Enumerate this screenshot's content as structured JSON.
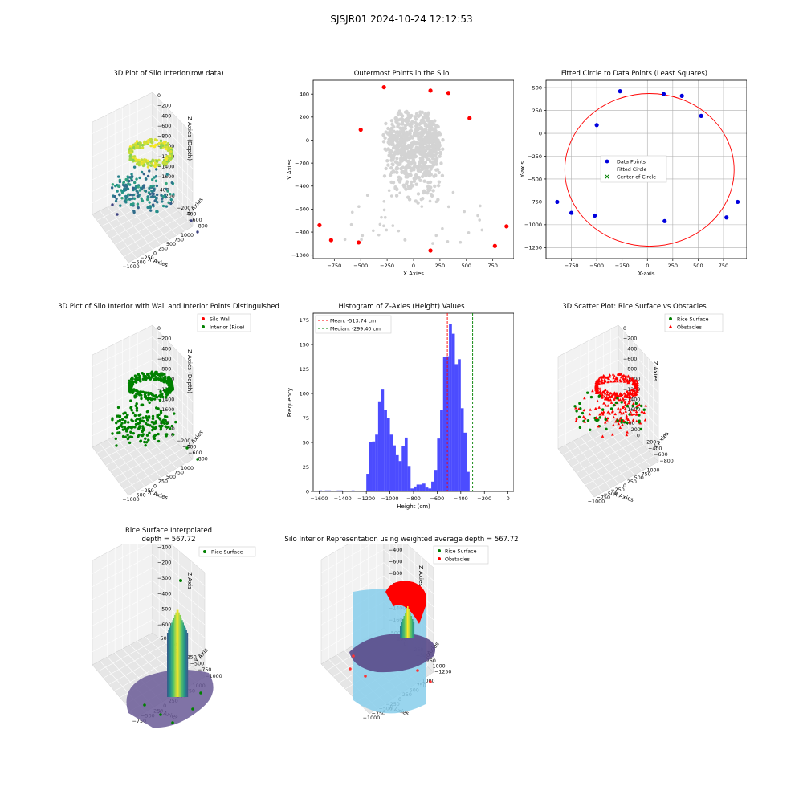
{
  "suptitle": "SJSJR01 2024-10-24 12:12:53",
  "panels": {
    "p1": {
      "title": "3D Plot of Silo Interior(row data)"
    },
    "p2": {
      "title": "Outermost Points in the Silo"
    },
    "p3": {
      "title": "Fitted Circle to Data Points (Least Squares)"
    },
    "p4": {
      "title": "3D Plot of Silo Interior with Wall and Interior Points Distinguished"
    },
    "p5": {
      "title": "Histogram of Z-Axies (Height) Values"
    },
    "p6": {
      "title": "3D Scatter Plot: Rice Surface vs Obstacles"
    },
    "p7": {
      "title_line1": "Rice Surface Interpolated",
      "title_line2": "depth = 567.72"
    },
    "p8": {
      "title": "Silo Interior Representation using weighted average depth = 567.72"
    }
  },
  "chart_data": [
    {
      "id": "p1",
      "type": "scatter",
      "projection": "3d",
      "title": "3D Plot of Silo Interior(row data)",
      "xlabel": "X Axies",
      "ylabel": "Y Axies",
      "zlabel": "Z Axies (Depth)",
      "xticks": [
        "−1000",
        "−500",
        "−250",
        "0",
        "250",
        "500",
        "750",
        "1000"
      ],
      "yticks": [
        "−800",
        "−600",
        "−400",
        "−200",
        "0",
        "200",
        "400"
      ],
      "zticks": [
        "0",
        "−200",
        "−400",
        "−600",
        "−800",
        "−1000",
        "−1200",
        "−1400",
        "−1600"
      ],
      "colormap": "viridis"
    },
    {
      "id": "p2",
      "type": "scatter",
      "title": "Outermost Points in the Silo",
      "xlabel": "X Axies",
      "ylabel": "Y Axies",
      "xlim": [
        -950,
        950
      ],
      "ylim": [
        -1030,
        520
      ],
      "xticks": [
        -750,
        -500,
        -250,
        0,
        250,
        500,
        750
      ],
      "yticks": [
        -1000,
        -800,
        -600,
        -400,
        -200,
        0,
        200,
        400
      ],
      "series": [
        {
          "color": "#d3d3d3"
        },
        {
          "color": "#ff0000",
          "x": [
            -890,
            -780,
            -520,
            -500,
            -280,
            160,
            160,
            330,
            530,
            770,
            880
          ],
          "y": [
            -740,
            -870,
            -890,
            90,
            460,
            430,
            -960,
            410,
            190,
            -920,
            -750
          ]
        }
      ]
    },
    {
      "id": "p3",
      "type": "scatter",
      "title": "Fitted Circle to Data Points (Least Squares)",
      "xlabel": "X-axis",
      "ylabel": "Y-axis",
      "xlim": [
        -1000,
        980
      ],
      "ylim": [
        -1370,
        580
      ],
      "grid": true,
      "xticks": [
        -750,
        -500,
        -250,
        0,
        250,
        500,
        750
      ],
      "yticks": [
        -1250,
        -1000,
        -750,
        -500,
        -250,
        0,
        250,
        500
      ],
      "legend": [
        "Data Points",
        "Fitted Circle",
        "Center of Circle"
      ],
      "legend_position": "center",
      "points": {
        "x": [
          -890,
          -750,
          -520,
          -500,
          -270,
          160,
          170,
          340,
          530,
          780,
          890
        ],
        "y": [
          -750,
          -870,
          -900,
          90,
          460,
          430,
          -960,
          410,
          190,
          -920,
          -750
        ]
      },
      "circle": {
        "cx": 20,
        "cy": -400,
        "r": 835
      },
      "center": {
        "x": 20,
        "y": -400
      }
    },
    {
      "id": "p4",
      "type": "scatter",
      "projection": "3d",
      "title": "3D Plot of Silo Interior with Wall and Interior Points Distinguished",
      "xlabel": "X Axies",
      "ylabel": "Y Axies",
      "zlabel": "Z Axies (Depth)",
      "legend": [
        "Silo Wall",
        "Interior (Rice)"
      ],
      "legend_position": "top-right",
      "xticks": [
        "−1000",
        "−500",
        "−250",
        "0",
        "250",
        "500",
        "750",
        "1000"
      ],
      "yticks": [
        "−800",
        "−600",
        "−400",
        "−200",
        "0",
        "200",
        "400"
      ],
      "zticks": [
        "0",
        "−200",
        "−400",
        "−600",
        "−800",
        "−1000",
        "−1200",
        "−1400",
        "−1600"
      ]
    },
    {
      "id": "p5",
      "type": "bar",
      "title": "Histogram of Z-Axies (Height) Values",
      "xlabel": "Height (cm)",
      "ylabel": "Frequency",
      "xlim": [
        -1650,
        50
      ],
      "ylim": [
        0,
        182
      ],
      "xticks": [
        -1600,
        -1400,
        -1200,
        -1000,
        -800,
        -600,
        -400,
        -200,
        0
      ],
      "yticks": [
        0,
        25,
        50,
        75,
        100,
        125,
        150,
        175
      ],
      "bin_start": -1600,
      "bin_width": 25,
      "values": [
        1,
        0,
        1,
        1,
        0,
        0,
        1,
        1,
        0,
        0,
        0,
        1,
        0,
        0,
        0,
        0,
        18,
        50,
        51,
        58,
        92,
        104,
        83,
        75,
        58,
        47,
        37,
        31,
        46,
        55,
        26,
        3,
        5,
        7,
        7,
        8,
        4,
        3,
        10,
        22,
        54,
        83,
        137,
        138,
        171,
        161,
        130,
        135,
        85,
        60,
        20
      ],
      "mean": -513.74,
      "median": -299.4,
      "legend": [
        "Mean: -513.74 cm",
        "Median: -299.40 cm"
      ],
      "legend_position": "top-left"
    },
    {
      "id": "p6",
      "type": "scatter",
      "projection": "3d",
      "title": "3D Scatter Plot: Rice Surface vs Obstacles",
      "xlabel": "X Axies",
      "ylabel": "Y Axies",
      "zlabel": "Z Axies",
      "legend": [
        "Rice Surface",
        "Obstacles"
      ],
      "legend_position": "top-right",
      "xticks": [
        "−1000",
        "−750",
        "−500",
        "−250",
        "0",
        "250",
        "500",
        "750",
        "1000"
      ],
      "yticks": [
        "−800",
        "−600",
        "−400",
        "−200",
        "0",
        "200",
        "400"
      ],
      "zticks": [
        "0",
        "−200",
        "−400",
        "−600",
        "−800",
        "−1000",
        "−1200",
        "−1400",
        "−1600"
      ]
    },
    {
      "id": "p7",
      "type": "area",
      "projection": "3d",
      "title": "Rice Surface Interpolated\ndepth = 567.72",
      "xlabel": "X Axies",
      "ylabel": "Y Axis",
      "zlabel": "Z Axis",
      "legend": [
        "Rice Surface"
      ],
      "legend_position": "top-right",
      "xticks": [
        "−750",
        "−500",
        "−250",
        "0",
        "250",
        "500",
        "750",
        "1000"
      ],
      "yticks": [
        "−1000",
        "−750",
        "−500",
        "−250",
        "0",
        "250",
        "500"
      ],
      "zticks": [
        "0",
        "−100",
        "−200",
        "−300",
        "−400",
        "−500",
        "−600"
      ]
    },
    {
      "id": "p8",
      "type": "area",
      "projection": "3d",
      "title": "Silo Interior Representation using weighted average depth = 567.72",
      "xlabel": "X Axies",
      "ylabel": "Y Axies",
      "zlabel": "Z Axies",
      "legend": [
        "Rice Surface",
        "Obstacles"
      ],
      "legend_position": "top-right",
      "xticks": [
        "−1000",
        "−750",
        "−500",
        "−250",
        "0",
        "250",
        "500",
        "750",
        "1000"
      ],
      "yticks": [
        "−1250",
        "−1000",
        "−750",
        "−500",
        "−250",
        "0",
        "250",
        "500"
      ],
      "zticks": [
        "0",
        "−200",
        "−400",
        "−600",
        "−800",
        "−1000",
        "−1200",
        "−1400",
        "−1600"
      ]
    }
  ]
}
